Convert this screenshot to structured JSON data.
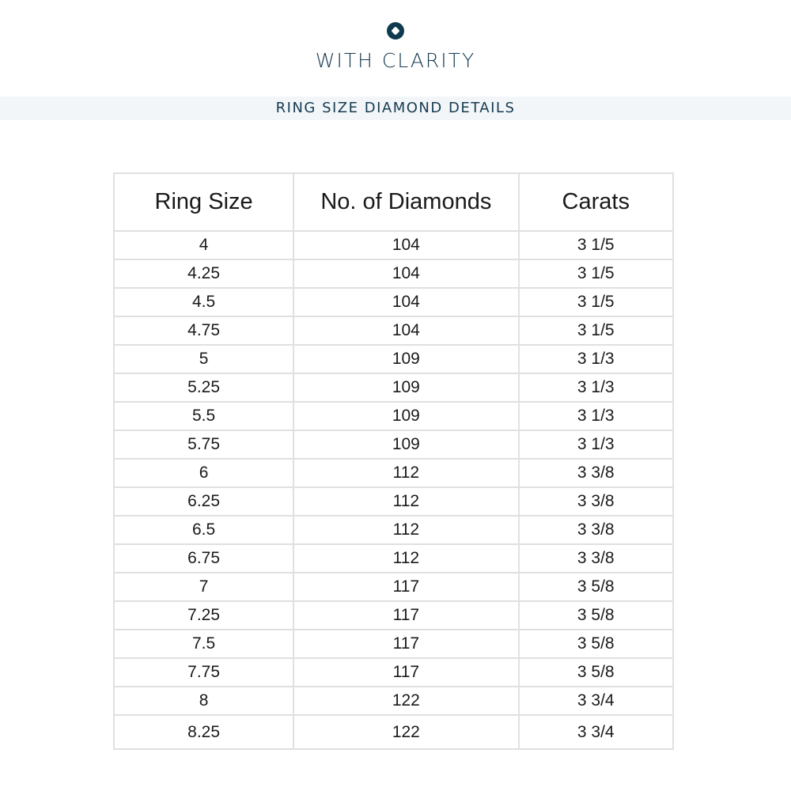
{
  "brand": {
    "logo_icon": "diamond-circle-icon",
    "name": "WITH CLARITY",
    "color": "#0f3a4f"
  },
  "banner": {
    "title": "RING SIZE DIAMOND DETAILS"
  },
  "table": {
    "headers": [
      "Ring Size",
      "No. of Diamonds",
      "Carats"
    ],
    "rows": [
      [
        "4",
        "104",
        "3 1/5"
      ],
      [
        "4.25",
        "104",
        "3 1/5"
      ],
      [
        "4.5",
        "104",
        "3 1/5"
      ],
      [
        "4.75",
        "104",
        "3 1/5"
      ],
      [
        "5",
        "109",
        "3 1/3"
      ],
      [
        "5.25",
        "109",
        "3 1/3"
      ],
      [
        "5.5",
        "109",
        "3 1/3"
      ],
      [
        "5.75",
        "109",
        "3 1/3"
      ],
      [
        "6",
        "112",
        "3 3/8"
      ],
      [
        "6.25",
        "112",
        "3 3/8"
      ],
      [
        "6.5",
        "112",
        "3 3/8"
      ],
      [
        "6.75",
        "112",
        "3 3/8"
      ],
      [
        "7",
        "117",
        "3 5/8"
      ],
      [
        "7.25",
        "117",
        "3 5/8"
      ],
      [
        "7.5",
        "117",
        "3 5/8"
      ],
      [
        "7.75",
        "117",
        "3 5/8"
      ],
      [
        "8",
        "122",
        "3 3/4"
      ],
      [
        "8.25",
        "122",
        "3 3/4"
      ]
    ]
  }
}
